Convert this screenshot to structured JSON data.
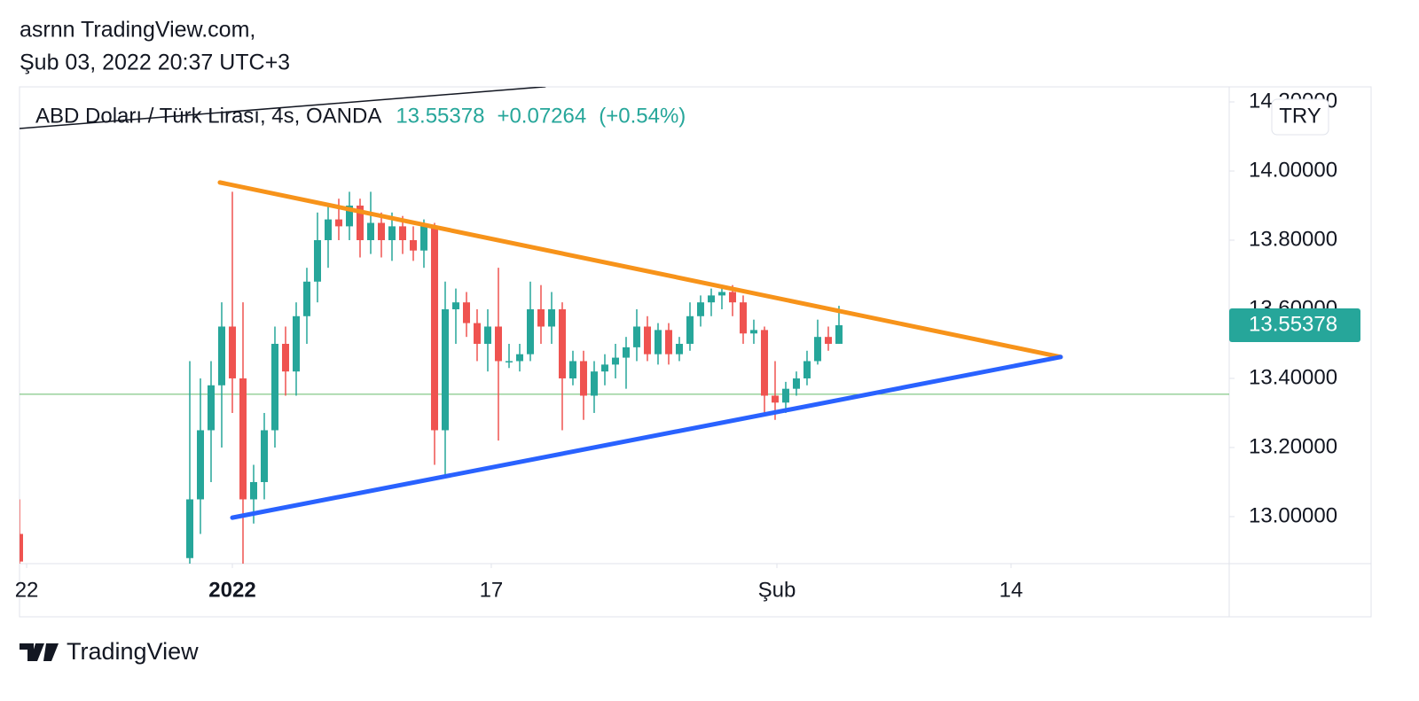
{
  "header": {
    "author": "asrnn TradingView.com,",
    "date": "Şub 03, 2022 20:37 UTC+3"
  },
  "footer": {
    "brand": "TradingView"
  },
  "chart_data": {
    "type": "candlestick",
    "symbol": "ABD Doları / Türk Lirası, 4s, OANDA",
    "last_price": 13.55378,
    "change": "+0.07264",
    "change_percent": "(+0.54%)",
    "currency": "TRY",
    "up_color": "#26a69a",
    "down_color": "#ef5350",
    "x": [
      0,
      16,
      17,
      18,
      19,
      20,
      21,
      22,
      23,
      24,
      25,
      26,
      27,
      28,
      29,
      30,
      31,
      32,
      33,
      34,
      35,
      36,
      37,
      38,
      39,
      40,
      41,
      42,
      43,
      44,
      45,
      46,
      47,
      48,
      49,
      50,
      51,
      52,
      53,
      54,
      55,
      56,
      57,
      58,
      59,
      60,
      61,
      62,
      63,
      64,
      65,
      66,
      67,
      68,
      69,
      70,
      71,
      72,
      73,
      74,
      75,
      76,
      77
    ],
    "open": [
      12.95,
      12.88,
      13.05,
      13.25,
      13.38,
      13.55,
      13.4,
      13.05,
      13.1,
      13.25,
      13.5,
      13.42,
      13.58,
      13.68,
      13.8,
      13.86,
      13.84,
      13.9,
      13.8,
      13.85,
      13.8,
      13.84,
      13.8,
      13.77,
      13.84,
      13.25,
      13.6,
      13.62,
      13.56,
      13.5,
      13.55,
      13.45,
      13.45,
      13.47,
      13.6,
      13.55,
      13.6,
      13.4,
      13.45,
      13.35,
      13.42,
      13.44,
      13.46,
      13.49,
      13.55,
      13.47,
      13.54,
      13.47,
      13.5,
      13.58,
      13.62,
      13.64,
      13.65,
      13.62,
      13.53,
      13.54,
      13.35,
      13.33,
      13.37,
      13.4,
      13.45,
      13.52,
      13.5
    ],
    "high": [
      13.05,
      13.45,
      13.4,
      13.45,
      13.62,
      13.94,
      13.62,
      13.15,
      13.3,
      13.55,
      13.55,
      13.62,
      13.72,
      13.88,
      13.9,
      13.92,
      13.94,
      13.92,
      13.94,
      13.88,
      13.88,
      13.87,
      13.84,
      13.86,
      13.85,
      13.68,
      13.66,
      13.65,
      13.6,
      13.6,
      13.72,
      13.5,
      13.5,
      13.68,
      13.67,
      13.65,
      13.62,
      13.48,
      13.48,
      13.45,
      13.47,
      13.5,
      13.52,
      13.6,
      13.58,
      13.56,
      13.56,
      13.52,
      13.62,
      13.64,
      13.66,
      13.67,
      13.67,
      13.64,
      13.57,
      13.55,
      13.45,
      13.39,
      13.42,
      13.48,
      13.57,
      13.55,
      13.61
    ],
    "low": [
      12.86,
      12.86,
      12.95,
      13.1,
      13.2,
      13.3,
      12.86,
      12.98,
      13.05,
      13.2,
      13.35,
      13.35,
      13.5,
      13.62,
      13.72,
      13.8,
      13.8,
      13.75,
      13.76,
      13.75,
      13.74,
      13.76,
      13.74,
      13.72,
      13.15,
      13.12,
      13.5,
      13.52,
      13.45,
      13.42,
      13.22,
      13.43,
      13.42,
      13.45,
      13.5,
      13.5,
      13.25,
      13.38,
      13.28,
      13.3,
      13.38,
      13.4,
      13.37,
      13.45,
      13.45,
      13.44,
      13.44,
      13.45,
      13.48,
      13.55,
      13.58,
      13.6,
      13.58,
      13.5,
      13.5,
      13.3,
      13.28,
      13.3,
      13.35,
      13.38,
      13.44,
      13.48,
      13.5
    ],
    "close": [
      12.87,
      13.05,
      13.25,
      13.38,
      13.55,
      13.4,
      13.05,
      13.1,
      13.25,
      13.5,
      13.42,
      13.58,
      13.68,
      13.8,
      13.86,
      13.84,
      13.9,
      13.8,
      13.85,
      13.8,
      13.84,
      13.8,
      13.77,
      13.84,
      13.25,
      13.6,
      13.62,
      13.56,
      13.5,
      13.55,
      13.45,
      13.45,
      13.47,
      13.6,
      13.55,
      13.6,
      13.4,
      13.45,
      13.35,
      13.42,
      13.44,
      13.46,
      13.49,
      13.55,
      13.47,
      13.54,
      13.47,
      13.5,
      13.58,
      13.62,
      13.64,
      13.65,
      13.62,
      13.53,
      13.54,
      13.35,
      13.33,
      13.37,
      13.4,
      13.45,
      13.52,
      13.5,
      13.55378
    ],
    "xlim": [
      0,
      113.67
    ],
    "xticks": [
      {
        "value": 0.67,
        "label": "22"
      },
      {
        "value": 20,
        "label": "2022"
      },
      {
        "value": 44.33,
        "label": "17"
      },
      {
        "value": 71.17,
        "label": "Şub"
      },
      {
        "value": 93.17,
        "label": "14"
      }
    ],
    "ylim": [
      12.864,
      14.2436
    ],
    "yticks": [
      {
        "value": 13,
        "label": "13.00000"
      },
      {
        "value": 13.2,
        "label": "13.20000"
      },
      {
        "value": 13.4,
        "label": "13.40000"
      },
      {
        "value": 13.6,
        "label": "13.60000"
      },
      {
        "value": 13.8,
        "label": "13.80000"
      },
      {
        "value": 14,
        "label": "14.00000"
      },
      {
        "value": 14.2,
        "label": "14.20000"
      }
    ],
    "hline": {
      "value": 13.354,
      "color": "#66bb6a"
    },
    "drawings": [
      {
        "color": "#f7931a",
        "points": [
          [
            18.83,
            13.967
          ],
          [
            97.83,
            13.462
          ]
        ]
      },
      {
        "color": "#2962ff",
        "points": [
          [
            20,
            12.997
          ],
          [
            97.83,
            13.462
          ]
        ]
      },
      {
        "color": "#131722",
        "points": [
          [
            0,
            14.123
          ],
          [
            49.4,
            14.244
          ]
        ]
      }
    ]
  }
}
